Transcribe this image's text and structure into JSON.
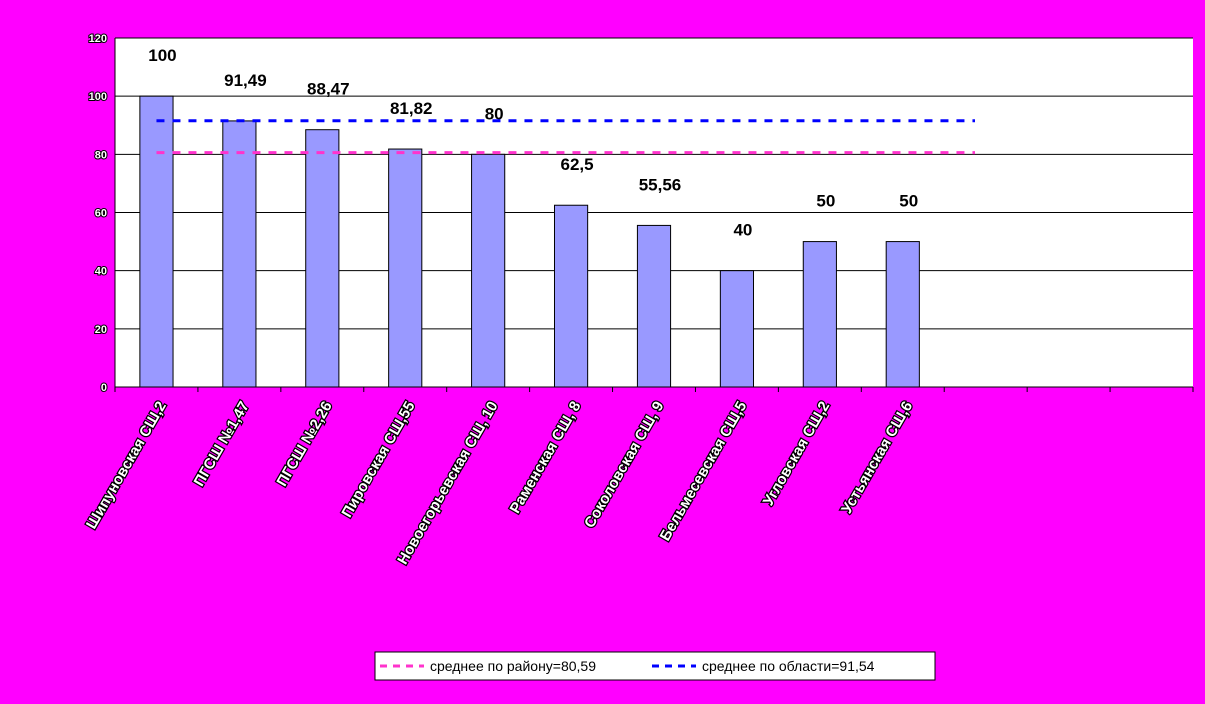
{
  "chart_data": {
    "type": "bar",
    "categories": [
      "Шипуновская СШ,2",
      "ПГСШ №1,47",
      "ПГСШ №2,26",
      "Пировская СШ,55",
      "Новоегорьевская СШ, 10",
      "Раменская СШ, 8",
      "Соколовская СШ, 9",
      "Бельмесевская СШ,5",
      "Угловская СШ,2",
      "Устьянская СШ,6",
      null,
      null,
      null
    ],
    "values": [
      100,
      91.49,
      88.47,
      81.82,
      80,
      62.5,
      55.56,
      40,
      50,
      50,
      null,
      null,
      null
    ],
    "value_labels": [
      "100",
      "91,49",
      "88,47",
      "81,82",
      "80",
      "62,5",
      "55,56",
      "40",
      "50",
      "50",
      null,
      null,
      null
    ],
    "color": "#9999ff",
    "ylim": [
      0,
      120
    ],
    "yticks": [
      0,
      20,
      40,
      60,
      80,
      100,
      120
    ],
    "grid": true,
    "reference_lines": [
      {
        "name": "среднее по району=80,59",
        "value": 80.59,
        "color": "#ff33cc"
      },
      {
        "name": "среднее по области=91,54",
        "value": 91.54,
        "color": "#0000ff"
      }
    ],
    "legend": "bottom"
  }
}
